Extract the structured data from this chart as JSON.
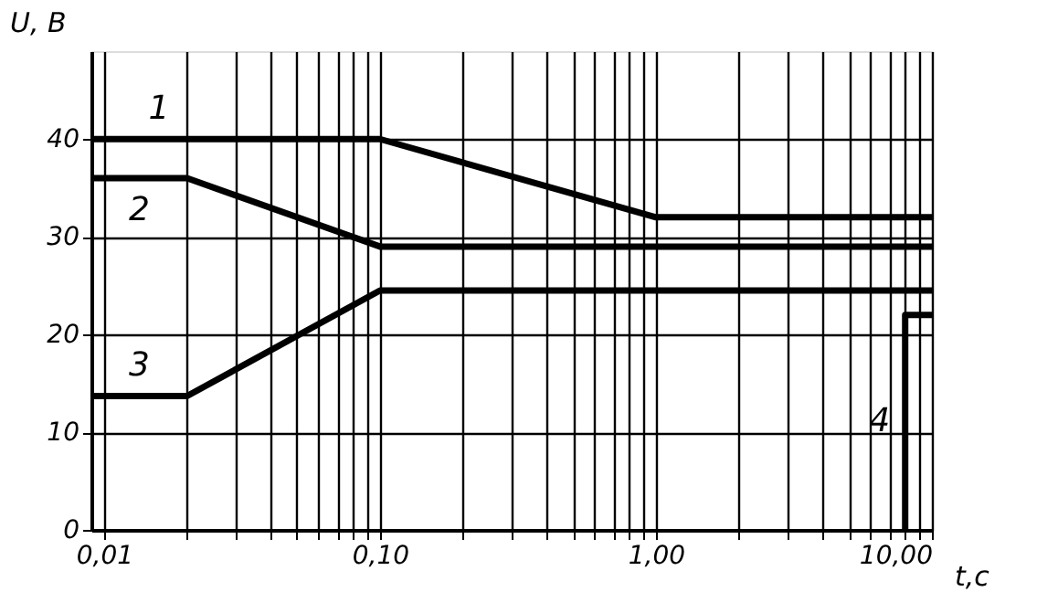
{
  "chart_data": {
    "type": "line",
    "xlabel": "t,c",
    "ylabel": "U, В",
    "series": [
      {
        "name": "1",
        "color": "#000000",
        "x": [
          0.009,
          0.1,
          1.0,
          10
        ],
        "values": [
          40,
          40,
          32,
          32
        ]
      },
      {
        "name": "2",
        "color": "#000000",
        "x": [
          0.009,
          0.02,
          0.1,
          10
        ],
        "values": [
          36,
          36,
          29,
          29
        ]
      },
      {
        "name": "3",
        "color": "#000000",
        "x": [
          0.009,
          0.02,
          0.1,
          10
        ],
        "values": [
          13.7,
          13.7,
          24.5,
          24.5
        ]
      },
      {
        "name": "4",
        "color": "#000000",
        "x": [
          8,
          8,
          10
        ],
        "values": [
          0,
          22,
          22
        ]
      }
    ],
    "legend": false,
    "log": "x",
    "xlim": [
      0.009,
      10
    ],
    "ylim": [
      0,
      49
    ],
    "xticks": [
      {
        "value": 0.01,
        "label": "0,01"
      },
      {
        "value": 0.02,
        "label": null
      },
      {
        "value": 0.03,
        "label": null
      },
      {
        "value": 0.04,
        "label": null
      },
      {
        "value": 0.05,
        "label": null
      },
      {
        "value": 0.06,
        "label": null
      },
      {
        "value": 0.07,
        "label": null
      },
      {
        "value": 0.08,
        "label": null
      },
      {
        "value": 0.09,
        "label": null
      },
      {
        "value": 0.1,
        "label": "0,10"
      },
      {
        "value": 0.2,
        "label": null
      },
      {
        "value": 0.3,
        "label": null
      },
      {
        "value": 0.4,
        "label": null
      },
      {
        "value": 0.5,
        "label": null
      },
      {
        "value": 0.6,
        "label": null
      },
      {
        "value": 0.7,
        "label": null
      },
      {
        "value": 0.8,
        "label": null
      },
      {
        "value": 0.9,
        "label": null
      },
      {
        "value": 1,
        "label": "1,00"
      },
      {
        "value": 2,
        "label": null
      },
      {
        "value": 3,
        "label": null
      },
      {
        "value": 4,
        "label": null
      },
      {
        "value": 5,
        "label": null
      },
      {
        "value": 6,
        "label": null
      },
      {
        "value": 7,
        "label": null
      },
      {
        "value": 8,
        "label": null
      },
      {
        "value": 9,
        "label": null
      },
      {
        "value": 10,
        "label": "10,00"
      }
    ],
    "yticks": [
      0,
      10,
      20,
      30,
      40
    ],
    "grid": true,
    "marker": "none",
    "line_style": "solid"
  }
}
